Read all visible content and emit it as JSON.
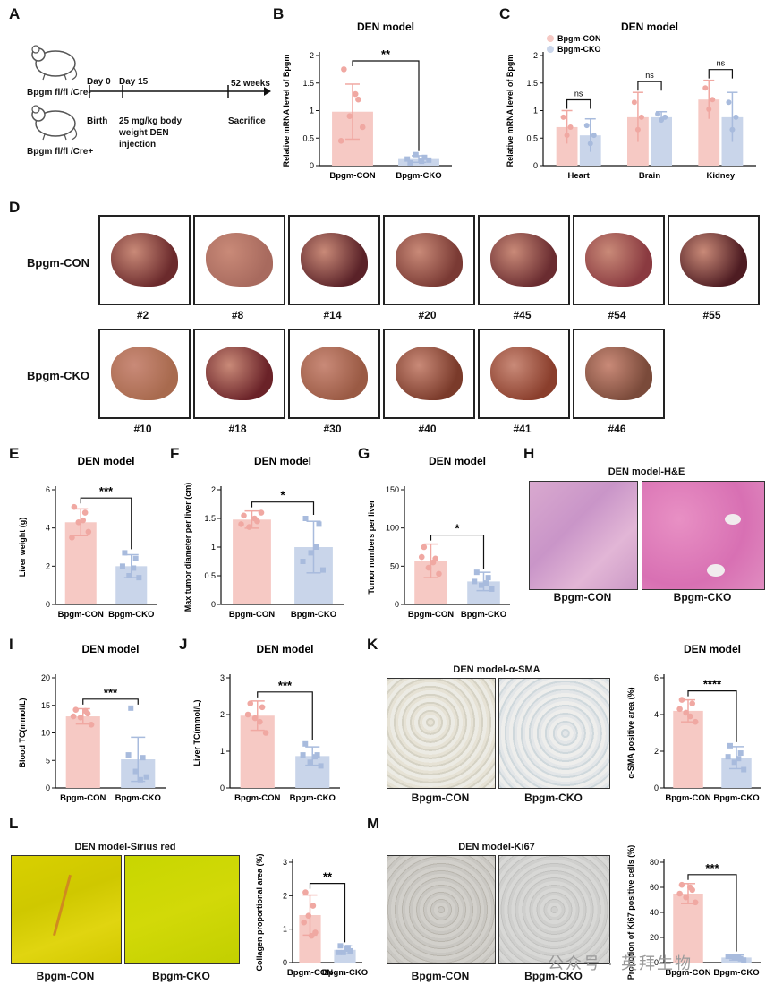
{
  "panel_letters": [
    "A",
    "B",
    "C",
    "D",
    "E",
    "F",
    "G",
    "H",
    "I",
    "J",
    "K",
    "L",
    "M"
  ],
  "panelA": {
    "mouse1_label": "Bpgm fl/fl /Cre-",
    "mouse2_label": "Bpgm fl/fl /Cre+",
    "day0": "Day 0",
    "day15": "Day 15",
    "birth": "Birth",
    "injection_line1": "25 mg/kg body",
    "injection_line2": "weight DEN",
    "injection_line3": "injection",
    "weeks": "52 weeks",
    "sacrifice": "Sacrifice"
  },
  "panelD": {
    "row1_label": "Bpgm-CON",
    "row2_label": "Bpgm-CKO",
    "row1_ids": [
      "#2",
      "#8",
      "#14",
      "#20",
      "#45",
      "#54",
      "#55"
    ],
    "row2_ids": [
      "#10",
      "#18",
      "#30",
      "#40",
      "#41",
      "#46"
    ]
  },
  "panelH": {
    "title": "DEN model-H&E",
    "cap1": "Bpgm-CON",
    "cap2": "Bpgm-CKO"
  },
  "panelK": {
    "img_title": "DEN model-α-SMA",
    "cap1": "Bpgm-CON",
    "cap2": "Bpgm-CKO"
  },
  "panelL": {
    "img_title": "DEN model-Sirius red",
    "cap1": "Bpgm-CON",
    "cap2": "Bpgm-CKO"
  },
  "panelM": {
    "img_title": "DEN model-Ki67",
    "cap1": "Bpgm-CON",
    "cap2": "Bpgm-CKO"
  },
  "watermark": "公众号 · 英拜生物",
  "colors": {
    "con": "#f6c9c4",
    "con_dot": "#f0a8a2",
    "cko": "#c9d5ea",
    "cko_dot": "#a8bbdd"
  },
  "chart_data": [
    {
      "id": "B",
      "type": "bar",
      "title": "DEN model",
      "ylabel": "Relative mRNA level of Bpgm",
      "categories": [
        "Bpgm-CON",
        "Bpgm-CKO"
      ],
      "values": [
        0.98,
        0.12
      ],
      "errors": [
        0.5,
        0.06
      ],
      "points": [
        [
          1.75,
          1.2,
          0.9,
          0.7,
          0.45,
          1.3
        ],
        [
          0.05,
          0.15,
          0.2,
          0.1,
          0.12,
          0.08
        ]
      ],
      "ylim": [
        0,
        2
      ],
      "ticks": [
        0,
        0.5,
        1,
        1.5,
        2
      ],
      "sig": "**"
    },
    {
      "id": "C",
      "type": "bar",
      "title": "DEN model",
      "ylabel": "Relative mRNA level of Bpgm",
      "groups": [
        "Heart",
        "Brain",
        "Kidney"
      ],
      "series": [
        {
          "name": "Bpgm-CON",
          "values": [
            0.7,
            0.88,
            1.2
          ],
          "errors": [
            0.3,
            0.45,
            0.35
          ]
        },
        {
          "name": "Bpgm-CKO",
          "values": [
            0.55,
            0.88,
            0.88
          ],
          "errors": [
            0.3,
            0.1,
            0.45
          ]
        }
      ],
      "ylim": [
        0,
        2
      ],
      "ticks": [
        0,
        0.5,
        1,
        1.5,
        2
      ],
      "sig": [
        "ns",
        "ns",
        "ns"
      ]
    },
    {
      "id": "E",
      "type": "bar",
      "title": "DEN model",
      "ylabel": "Liver weight (g)",
      "categories": [
        "Bpgm-CON",
        "Bpgm-CKO"
      ],
      "values": [
        4.3,
        2.0
      ],
      "errors": [
        0.7,
        0.6
      ],
      "points": [
        [
          5.1,
          4.8,
          4.3,
          3.8,
          3.5,
          4.4
        ],
        [
          2.7,
          2.4,
          1.5,
          1.4,
          2.0,
          1.9
        ]
      ],
      "ylim": [
        0,
        6
      ],
      "ticks": [
        0,
        2,
        4,
        6
      ],
      "sig": "***"
    },
    {
      "id": "F",
      "type": "bar",
      "title": "DEN model",
      "ylabel": "Max tumor diameter per liver (cm)",
      "categories": [
        "Bpgm-CON",
        "Bpgm-CKO"
      ],
      "values": [
        1.48,
        1.0
      ],
      "errors": [
        0.15,
        0.45
      ],
      "points": [
        [
          1.55,
          1.45,
          1.35,
          1.6,
          1.4,
          1.5
        ],
        [
          1.5,
          1.4,
          0.9,
          0.6,
          0.75,
          1.0
        ]
      ],
      "ylim": [
        0,
        2
      ],
      "ticks": [
        0,
        0.5,
        1,
        1.5,
        2
      ],
      "sig": "*"
    },
    {
      "id": "G",
      "type": "bar",
      "title": "DEN model",
      "ylabel": "Tumor numbers per liver",
      "categories": [
        "Bpgm-CON",
        "Bpgm-CKO"
      ],
      "values": [
        57,
        30
      ],
      "errors": [
        22,
        12
      ],
      "points": [
        [
          75,
          60,
          48,
          40,
          62,
          55
        ],
        [
          42,
          35,
          25,
          20,
          30,
          28
        ]
      ],
      "ylim": [
        0,
        150
      ],
      "ticks": [
        0,
        50,
        100,
        150
      ],
      "sig": "*"
    },
    {
      "id": "I",
      "type": "bar",
      "title": "DEN model",
      "ylabel": "Blood TC(mmol/L)",
      "categories": [
        "Bpgm-CON",
        "Bpgm-CKO"
      ],
      "values": [
        13,
        5.2
      ],
      "errors": [
        1.4,
        4.0
      ],
      "points": [
        [
          14.2,
          13.5,
          12.8,
          11.5,
          13.0,
          14.0
        ],
        [
          14.5,
          5.5,
          3.0,
          2.0,
          6.0,
          1.5
        ]
      ],
      "ylim": [
        0,
        20
      ],
      "ticks": [
        0,
        5,
        10,
        15,
        20
      ],
      "sig": "***"
    },
    {
      "id": "J",
      "type": "bar",
      "title": "DEN model",
      "ylabel": "Liver TC(mmol/L)",
      "categories": [
        "Bpgm-CON",
        "Bpgm-CKO"
      ],
      "values": [
        1.97,
        0.87
      ],
      "errors": [
        0.4,
        0.25
      ],
      "points": [
        [
          2.3,
          2.2,
          1.9,
          1.5,
          2.0,
          1.8
        ],
        [
          1.2,
          0.9,
          0.7,
          0.6,
          0.9,
          0.85
        ]
      ],
      "ylim": [
        0,
        3
      ],
      "ticks": [
        0,
        1,
        2,
        3
      ],
      "sig": "***"
    },
    {
      "id": "K",
      "type": "bar",
      "title": "DEN model",
      "ylabel": "α-SMA positive area (%)",
      "categories": [
        "Bpgm-CON",
        "Bpgm-CKO"
      ],
      "values": [
        4.2,
        1.65
      ],
      "errors": [
        0.6,
        0.6
      ],
      "points": [
        [
          4.8,
          4.6,
          4.1,
          3.6,
          4.3,
          3.9
        ],
        [
          2.3,
          1.9,
          1.4,
          1.0,
          1.7,
          1.6
        ]
      ],
      "ylim": [
        0,
        6
      ],
      "ticks": [
        0,
        2,
        4,
        6
      ],
      "sig": "****"
    },
    {
      "id": "L",
      "type": "bar",
      "title": "",
      "ylabel": "Collagen proportional area (%)",
      "categories": [
        "Bpgm-CON",
        "Bpgm-CKO"
      ],
      "values": [
        1.42,
        0.38
      ],
      "errors": [
        0.6,
        0.12
      ],
      "points": [
        [
          2.1,
          1.7,
          1.4,
          0.9,
          1.2,
          0.8
        ],
        [
          0.5,
          0.45,
          0.3,
          0.35,
          0.3,
          0.4
        ]
      ],
      "ylim": [
        0,
        3
      ],
      "ticks": [
        0,
        1,
        2,
        3
      ],
      "sig": "**"
    },
    {
      "id": "M",
      "type": "bar",
      "title": "",
      "ylabel": "Propotion of Ki67 positive cells (%)",
      "categories": [
        "Bpgm-CON",
        "Bpgm-CKO"
      ],
      "values": [
        55,
        4
      ],
      "errors": [
        8,
        2
      ],
      "points": [
        [
          62,
          58,
          52,
          48,
          55,
          60
        ],
        [
          5,
          3,
          4,
          2,
          5,
          4
        ]
      ],
      "ylim": [
        0,
        80
      ],
      "ticks": [
        0,
        20,
        40,
        60,
        80
      ],
      "sig": "***"
    }
  ]
}
